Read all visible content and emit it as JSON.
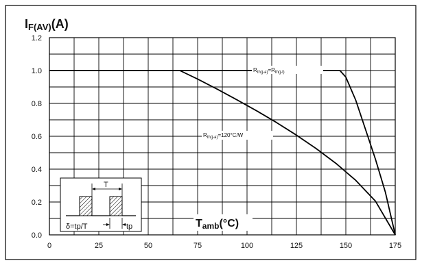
{
  "chart_data": {
    "type": "line",
    "ylabel": {
      "main": "I",
      "sub": "F(AV)",
      "unit": "(A)"
    },
    "xlabel": {
      "main": "T",
      "sub": "amb",
      "unit": "(°C)"
    },
    "xlim": [
      0,
      175
    ],
    "ylim": [
      0.0,
      1.2
    ],
    "x_ticks": [
      "0",
      "25",
      "50",
      "75",
      "100",
      "125",
      "150",
      "175"
    ],
    "y_ticks": [
      "0.0",
      "0.2",
      "0.4",
      "0.6",
      "0.8",
      "1.0",
      "1.2"
    ],
    "grid": true,
    "series": [
      {
        "name": "Rth(j-a)=Rth(j-l)",
        "x": [
          0,
          147,
          150,
          155,
          160,
          165,
          170,
          175
        ],
        "y": [
          1.0,
          1.0,
          0.96,
          0.82,
          0.64,
          0.46,
          0.26,
          0.0
        ]
      },
      {
        "name": "Rth(j-a)=120°C/W",
        "x": [
          0,
          66,
          75,
          85,
          95,
          105,
          115,
          125,
          135,
          145,
          155,
          165,
          175
        ],
        "y": [
          1.0,
          1.0,
          0.948,
          0.886,
          0.821,
          0.754,
          0.683,
          0.607,
          0.525,
          0.435,
          0.332,
          0.205,
          0.0
        ]
      }
    ],
    "annotations": [
      {
        "main": "R",
        "sub": "th(j-a)",
        "mid": "=R",
        "sub2": "th(j-l)"
      },
      {
        "main": "R",
        "sub": "th(j-a)",
        "rest": "=120°C/W"
      }
    ],
    "inset": {
      "period_label": "T",
      "duty_label": "δ=tp/T",
      "pulse_label": "tp"
    }
  }
}
